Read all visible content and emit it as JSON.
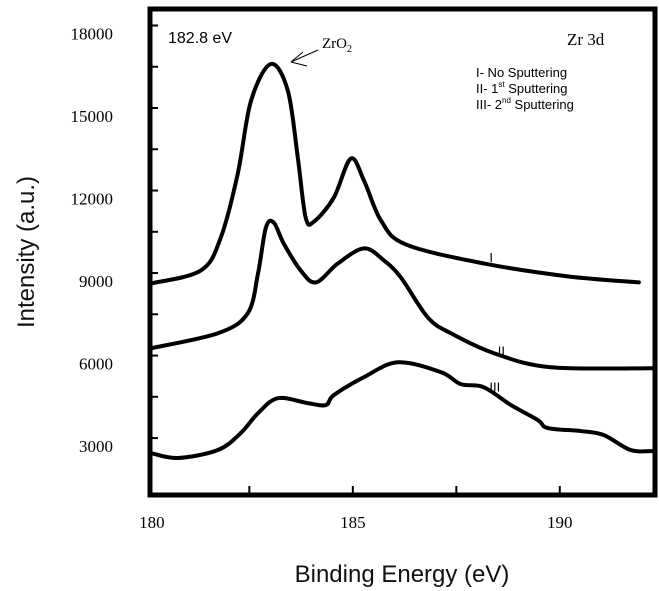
{
  "chart_data": {
    "type": "line",
    "title": "",
    "xlabel": "Binding Energy (eV)",
    "ylabel": "Intensity (a.u.)",
    "xlim": [
      180.1,
      192.3
    ],
    "ylim": [
      930,
      18600
    ],
    "x_tick_labels": [
      "180",
      "185",
      "190"
    ],
    "x_tick_values": [
      180,
      185,
      190
    ],
    "x_minor_ticks": [
      182.5,
      185,
      187.5,
      190
    ],
    "y_tick_labels": [
      "3000",
      "6000",
      "9000",
      "12000",
      "15000",
      "18000"
    ],
    "y_tick_values": [
      3000,
      6000,
      9000,
      12000,
      15000,
      18000
    ],
    "y_minor_step": 1500,
    "grid": false,
    "line_color": "#000000",
    "annotations": {
      "peak_energy": "182.8  eV",
      "peak_label_main": "ZrO",
      "peak_label_sub": "2",
      "region": "Zr 3d",
      "legend": [
        {
          "prefix": "I- No Sputtering",
          "sup": "",
          "suffix": ""
        },
        {
          "prefix": "II- 1",
          "sup": "st",
          "suffix": "  Sputtering"
        },
        {
          "prefix": "III- 2",
          "sup": "nd",
          "suffix": "  Sputtering"
        }
      ]
    },
    "series": [
      {
        "name": "I",
        "points": [
          [
            180.12,
            8620
          ],
          [
            181.33,
            9095
          ],
          [
            181.81,
            10290
          ],
          [
            182.22,
            12610
          ],
          [
            182.54,
            15260
          ],
          [
            183.02,
            16600
          ],
          [
            183.43,
            15630
          ],
          [
            183.67,
            13200
          ],
          [
            183.86,
            11020
          ],
          [
            184.06,
            10870
          ],
          [
            184.54,
            11740
          ],
          [
            184.95,
            13160
          ],
          [
            185.27,
            12360
          ],
          [
            185.68,
            10910
          ],
          [
            186.28,
            10040
          ],
          [
            188.16,
            9350
          ],
          [
            190.19,
            8880
          ],
          [
            191.91,
            8660
          ]
        ]
      },
      {
        "name": "II",
        "points": [
          [
            180.12,
            6265
          ],
          [
            181.74,
            6810
          ],
          [
            182.46,
            7535
          ],
          [
            182.71,
            8990
          ],
          [
            182.9,
            10655
          ],
          [
            183.09,
            10835
          ],
          [
            183.33,
            10075
          ],
          [
            183.74,
            9095
          ],
          [
            184.11,
            8660
          ],
          [
            184.64,
            9350
          ],
          [
            185.27,
            9895
          ],
          [
            185.75,
            9460
          ],
          [
            186.16,
            8840
          ],
          [
            186.81,
            7390
          ],
          [
            187.37,
            6810
          ],
          [
            188.41,
            6085
          ],
          [
            189.78,
            5575
          ],
          [
            192.27,
            5540
          ]
        ]
      },
      {
        "name": "III",
        "points": [
          [
            180.12,
            2455
          ],
          [
            180.77,
            2275
          ],
          [
            181.74,
            2565
          ],
          [
            182.29,
            3180
          ],
          [
            182.71,
            3905
          ],
          [
            183.19,
            4450
          ],
          [
            183.91,
            4270
          ],
          [
            184.35,
            4200
          ],
          [
            184.54,
            4560
          ],
          [
            185.27,
            5215
          ],
          [
            186.09,
            5755
          ],
          [
            187.13,
            5395
          ],
          [
            187.61,
            4960
          ],
          [
            188.16,
            4850
          ],
          [
            188.82,
            4200
          ],
          [
            189.47,
            3655
          ],
          [
            189.71,
            3365
          ],
          [
            190.51,
            3255
          ],
          [
            191.06,
            3110
          ],
          [
            191.71,
            2565
          ],
          [
            192.27,
            2530
          ]
        ]
      }
    ],
    "series_labels": [
      {
        "text": "I",
        "x": 188.3,
        "y": 9400
      },
      {
        "text": "II",
        "x": 188.5,
        "y": 6000
      },
      {
        "text": "III",
        "x": 188.3,
        "y": 4700
      }
    ]
  }
}
